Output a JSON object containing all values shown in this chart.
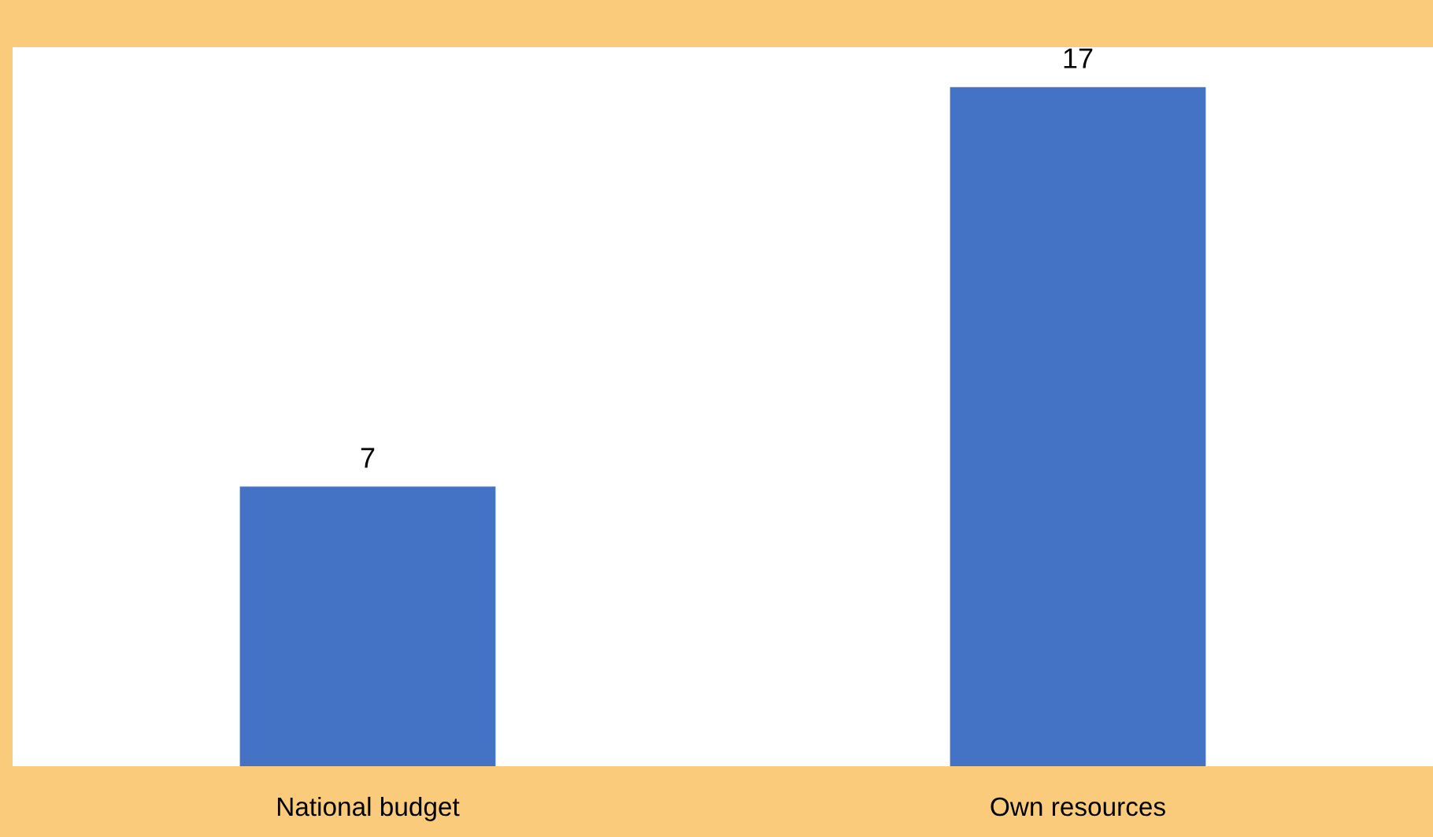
{
  "chart_data": {
    "type": "bar",
    "categories": [
      "National budget",
      "Own resources"
    ],
    "values": [
      7,
      17
    ],
    "color": "#4472c4",
    "ylim": [
      0,
      18
    ],
    "tick_labels": "x",
    "data_labels": true,
    "grid": false,
    "legend": false
  }
}
